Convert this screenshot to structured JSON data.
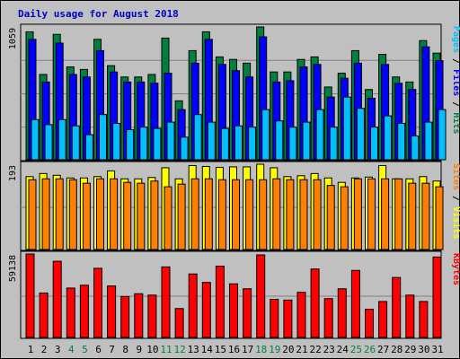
{
  "chart_data": {
    "type": "bar",
    "title": "Daily usage for August 2018",
    "days": [
      "1",
      "2",
      "3",
      "4",
      "5",
      "6",
      "7",
      "8",
      "9",
      "10",
      "11",
      "12",
      "13",
      "14",
      "15",
      "16",
      "17",
      "18",
      "19",
      "20",
      "21",
      "22",
      "23",
      "24",
      "25",
      "26",
      "27",
      "28",
      "29",
      "30",
      "31"
    ],
    "weekend_days": [
      "4",
      "5",
      "11",
      "12",
      "18",
      "19",
      "25",
      "26"
    ],
    "colors": {
      "hits": "#008040",
      "files": "#0000ff",
      "pages": "#00c0ff",
      "visits": "#ffff00",
      "sites": "#ff8000",
      "kbytes": "#ff0000",
      "weekday_label": "#000000",
      "weekend_label": "#008040",
      "title": "#0000cc",
      "background": "#c0c0c0"
    },
    "panels": [
      {
        "id": "hits-files-pages",
        "ymax_label": "1059",
        "ymax": 1059,
        "legend": [
          {
            "text": "Pages",
            "color": "#00c0ff"
          },
          {
            "text": " / ",
            "color": "#000000"
          },
          {
            "text": "Files",
            "color": "#0000ff"
          },
          {
            "text": " / ",
            "color": "#000000"
          },
          {
            "text": "Hits",
            "color": "#008040"
          }
        ],
        "series": [
          {
            "name": "Hits",
            "color": "#008040",
            "values": [
              1020,
              680,
              1000,
              740,
              720,
              960,
              750,
              660,
              660,
              680,
              970,
              470,
              870,
              1020,
              820,
              800,
              770,
              1059,
              700,
              700,
              800,
              820,
              580,
              690,
              870,
              560,
              840,
              660,
              620,
              950,
              850
            ]
          },
          {
            "name": "Files",
            "color": "#0000ff",
            "values": [
              960,
              620,
              930,
              680,
              660,
              870,
              700,
              620,
              620,
              610,
              690,
              400,
              770,
              960,
              760,
              710,
              660,
              980,
              620,
              630,
              740,
              760,
              500,
              650,
              770,
              490,
              760,
              610,
              560,
              900,
              790
            ]
          },
          {
            "name": "Pages",
            "color": "#00c0ff",
            "values": [
              320,
              280,
              320,
              270,
              200,
              360,
              290,
              240,
              260,
              250,
              300,
              180,
              360,
              300,
              250,
              270,
              260,
              400,
              310,
              260,
              300,
              400,
              260,
              500,
              410,
              260,
              350,
              290,
              190,
              300,
              400
            ]
          }
        ]
      },
      {
        "id": "visits-sites",
        "ymax_label": "193",
        "ymax": 193,
        "legend": [
          {
            "text": "Sites",
            "color": "#ff8000"
          },
          {
            "text": " / ",
            "color": "#000000"
          },
          {
            "text": "Visits",
            "color": "#ffff00"
          }
        ],
        "series": [
          {
            "name": "Visits",
            "color": "#ffff00",
            "values": [
              165,
              172,
              168,
              162,
              162,
              165,
              178,
              160,
              160,
              163,
              185,
              160,
              190,
              188,
              186,
              187,
              187,
              193,
              185,
              165,
              167,
              172,
              162,
              152,
              162,
              164,
              190,
              160,
              160,
              165,
              155
            ]
          },
          {
            "name": "Sites",
            "color": "#ff8000",
            "values": [
              158,
              160,
              160,
              158,
              150,
              160,
              160,
              152,
              150,
              155,
              142,
              148,
              160,
              160,
              158,
              158,
              158,
              158,
              160,
              158,
              158,
              158,
              145,
              142,
              160,
              160,
              160,
              160,
              150,
              150,
              142
            ]
          }
        ]
      },
      {
        "id": "kbytes",
        "ymax_label": "59138",
        "ymax": 59138,
        "legend": [
          {
            "text": "KBytes",
            "color": "#ff0000"
          }
        ],
        "series": [
          {
            "name": "KBytes",
            "color": "#ff0000",
            "values": [
              59138,
              31500,
              54000,
              35000,
              37000,
              49000,
              36500,
              29000,
              31000,
              30000,
              50000,
              20500,
              45000,
              39000,
              50500,
              38000,
              34500,
              58500,
              27000,
              26500,
              32000,
              48500,
              27500,
              34500,
              47500,
              20000,
              25500,
              42500,
              30000,
              25500,
              57000
            ]
          }
        ]
      }
    ]
  }
}
